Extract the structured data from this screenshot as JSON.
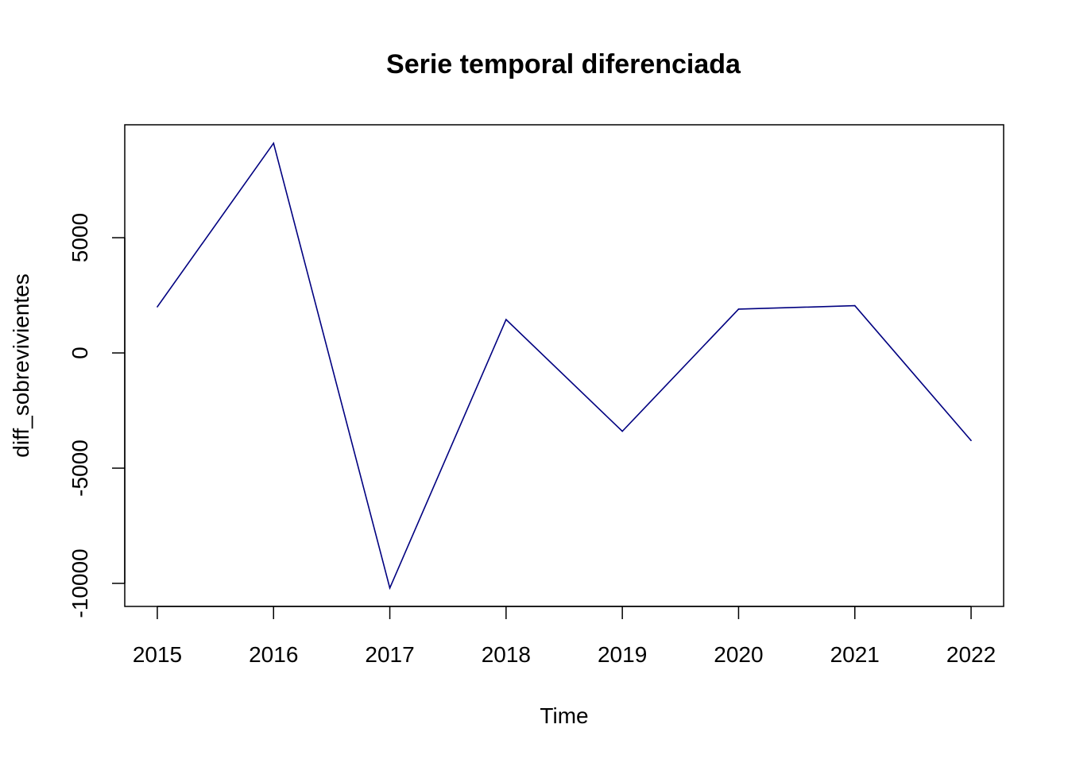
{
  "chart_data": {
    "type": "line",
    "title": "Serie temporal diferenciada",
    "xlabel": "Time",
    "ylabel": "diff_sobrevivientes",
    "x": [
      2015,
      2016,
      2017,
      2018,
      2019,
      2020,
      2021,
      2022
    ],
    "series": [
      {
        "values": [
          2000,
          9100,
          -10200,
          1450,
          -3400,
          1900,
          2050,
          -3800
        ]
      }
    ],
    "x_ticks": [
      "2015",
      "2016",
      "2017",
      "2018",
      "2019",
      "2020",
      "2021",
      "2022"
    ],
    "y_ticks": [
      "-10000",
      "-5000",
      "0",
      "5000"
    ],
    "xlim": [
      2014.72,
      2022.28
    ],
    "ylim": [
      -11000,
      9900
    ],
    "grid": false,
    "line_color": "#000080"
  }
}
